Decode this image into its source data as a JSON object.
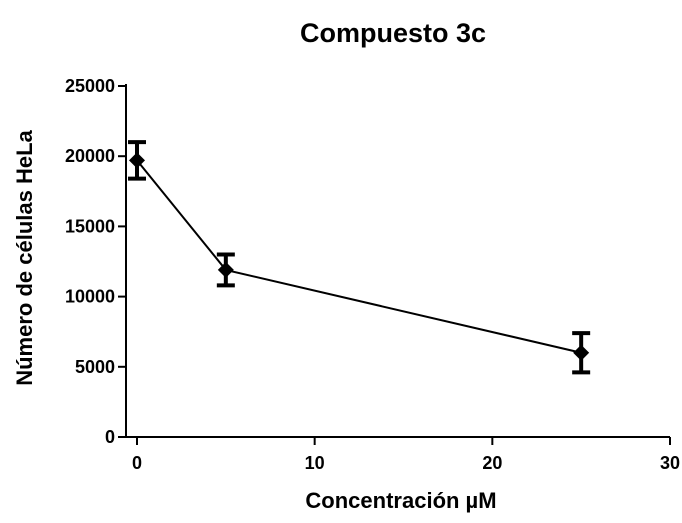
{
  "chart_data": {
    "type": "line",
    "title": "Compuesto 3c",
    "xlabel": "Concentración µM",
    "ylabel": "Número de células HeLa",
    "xlim": [
      0,
      30
    ],
    "ylim": [
      0,
      25000
    ],
    "x_ticks": [
      "0",
      "10",
      "20",
      "30"
    ],
    "y_ticks": [
      "0",
      "5000",
      "10000",
      "15000",
      "20000",
      "25000"
    ],
    "grid": false,
    "series": [
      {
        "x": [
          0,
          5,
          25
        ],
        "y": [
          19700,
          11900,
          6000
        ],
        "error": [
          1300,
          1100,
          1400
        ]
      }
    ],
    "colors": {
      "line": "#000000",
      "marker": "#000000"
    }
  }
}
